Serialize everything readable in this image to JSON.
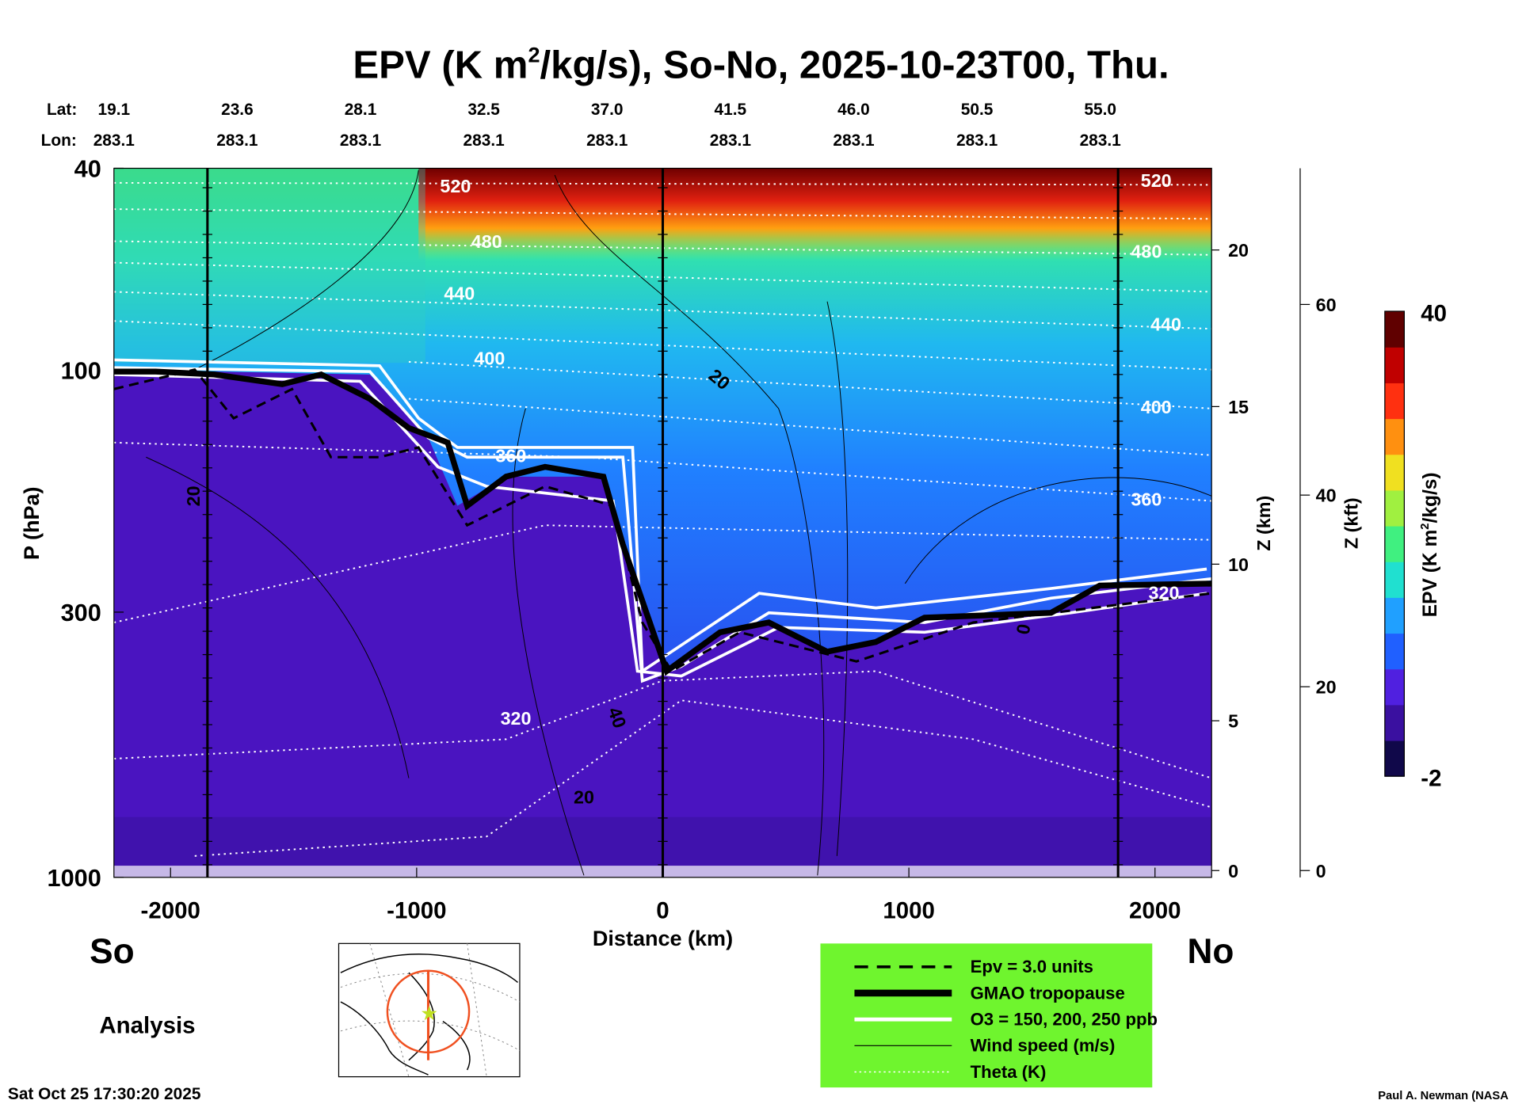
{
  "chart_data": {
    "type": "heatmap",
    "title": "EPV (K m²/kg/s), So-No, 2025-10-23T00, Thu.",
    "title_parts": {
      "pre": "EPV (K m",
      "sup": "2",
      "post": "/kg/s), So-No, 2025-10-23T00, Thu."
    },
    "xlabel": "Distance (km)",
    "ylabel": "P (hPa)",
    "y2label": "Z (km)",
    "y3label": "Z (kft)",
    "colorbar_label": "EPV (K m²/kg/s)",
    "colorbar_label_parts": {
      "pre": "EPV (K m",
      "sup": "2",
      "post": "/kg/s)"
    },
    "xlim": [
      -2230,
      2230
    ],
    "ylim": [
      1000,
      40
    ],
    "yscale": "log",
    "x_ticks": [
      "-2000",
      "-1000",
      "0",
      "1000",
      "2000"
    ],
    "x_tick_values": [
      -2000,
      -1000,
      0,
      1000,
      2000
    ],
    "y_ticks": [
      "40",
      "100",
      "300",
      "1000"
    ],
    "y_tick_values": [
      40,
      100,
      300,
      1000
    ],
    "z_km_ticks": [
      "0",
      "5",
      "10",
      "15",
      "20"
    ],
    "z_kft_ticks": [
      "0",
      "20",
      "40",
      "60"
    ],
    "colorbar_range": [
      -2,
      40
    ],
    "colorbar_ticks": [
      "40",
      "-2"
    ],
    "lat_label": "Lat:",
    "lon_label": "Lon:",
    "lat": [
      "19.1",
      "23.6",
      "28.1",
      "32.5",
      "37.0",
      "41.5",
      "46.0",
      "50.5",
      "55.0"
    ],
    "lon": [
      "283.1",
      "283.1",
      "283.1",
      "283.1",
      "283.1",
      "283.1",
      "283.1",
      "283.1",
      "283.1"
    ],
    "theta_labels": [
      "520",
      "480",
      "440",
      "400",
      "360",
      "320",
      "520",
      "480",
      "440",
      "400",
      "360",
      "320"
    ],
    "wind_labels": [
      "20",
      "20",
      "40",
      "20",
      "0"
    ],
    "vertical_lines_km": [
      -1850,
      0,
      1850
    ],
    "legend": {
      "placement": "bottom-center",
      "entries": [
        "Epv = 3.0 units",
        "GMAO tropopause",
        "O3 = 150, 200, 250 ppb",
        "Wind speed (m/s)",
        "Theta (K)"
      ]
    }
  },
  "labels": {
    "south": "So",
    "north": "No",
    "analysis": "Analysis",
    "timestamp": "Sat Oct 25 17:30:20 2025",
    "credit": "Paul A. Newman (NASA"
  },
  "colors": {
    "legend_bg": "#6ff52e",
    "troposphere": "#4a14c0",
    "colorbar": [
      "#10084a",
      "#3a10a0",
      "#5020e0",
      "#2060ff",
      "#20a0ff",
      "#20e0d0",
      "#40f080",
      "#a0f040",
      "#f0e020",
      "#ff9010",
      "#ff3010",
      "#c00000",
      "#600000"
    ]
  }
}
